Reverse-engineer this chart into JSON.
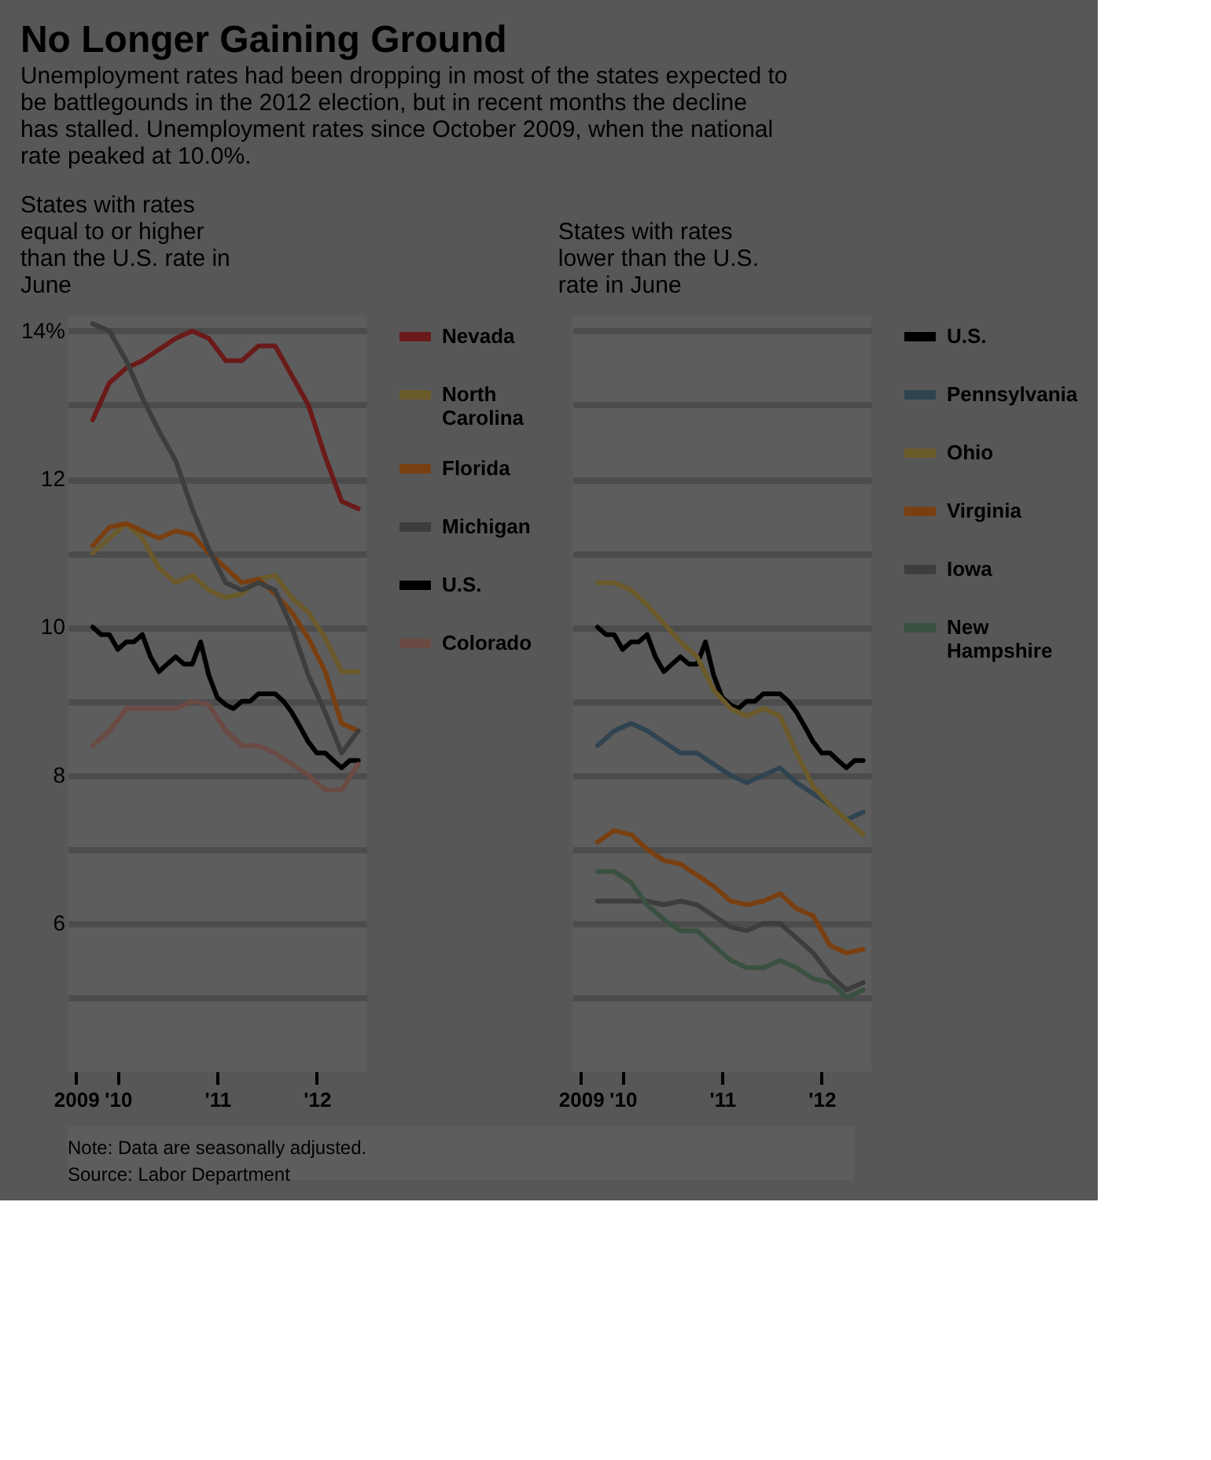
{
  "chart_data": [
    {
      "type": "line",
      "title": "No Longer Gaining Ground",
      "subtitle": "Unemployment rates had been dropping in most of the states expected to be battlegounds in the 2012 election, but in recent months the decline has stalled. Unemployment rates since October 2009, when the national rate peaked at 10.0%.",
      "annotations": [
        "States with rates equal to or higher than the U.S. rate in June",
        "Note: Data are seasonally adjusted.",
        "Source: Labor Department"
      ],
      "x": [
        "2009-10",
        "2009-12",
        "2010-02",
        "2010-04",
        "2010-06",
        "2010-08",
        "2010-10",
        "2010-12",
        "2011-02",
        "2011-04",
        "2011-06",
        "2011-08",
        "2011-10",
        "2011-12",
        "2012-02",
        "2012-04",
        "2012-06"
      ],
      "series": [
        {
          "name": "Nevada",
          "color": "#6b1a1a",
          "values": [
            12.8,
            13.3,
            13.5,
            13.6,
            13.75,
            13.9,
            14.0,
            13.9,
            13.6,
            13.6,
            13.8,
            13.8,
            13.4,
            13.0,
            12.3,
            11.7,
            11.6
          ]
        },
        {
          "name": "North Carolina",
          "color": "#6b5a2a",
          "values": [
            11.0,
            11.2,
            11.4,
            11.2,
            10.8,
            10.6,
            10.7,
            10.5,
            10.4,
            10.45,
            10.65,
            10.7,
            10.4,
            10.2,
            9.85,
            9.4,
            9.4
          ]
        },
        {
          "name": "Florida",
          "color": "#7a3f10",
          "values": [
            11.1,
            11.35,
            11.4,
            11.3,
            11.2,
            11.3,
            11.25,
            11.0,
            10.8,
            10.6,
            10.65,
            10.45,
            10.2,
            9.85,
            9.4,
            8.7,
            8.6
          ]
        },
        {
          "name": "Michigan",
          "color": "#3d3d3d",
          "values": [
            14.1,
            14.0,
            13.6,
            13.1,
            12.65,
            12.25,
            11.6,
            11.05,
            10.6,
            10.5,
            10.6,
            10.5,
            10.0,
            9.35,
            8.85,
            8.3,
            8.6
          ]
        },
        {
          "name": "U.S.",
          "color": "#000000",
          "x": [
            "2009-10",
            "2009-11",
            "2009-12",
            "2010-01",
            "2010-02",
            "2010-03",
            "2010-04",
            "2010-05",
            "2010-06",
            "2010-07",
            "2010-08",
            "2010-09",
            "2010-10",
            "2010-11",
            "2010-12",
            "2011-01",
            "2011-02",
            "2011-03",
            "2011-04",
            "2011-05",
            "2011-06",
            "2011-07",
            "2011-08",
            "2011-09",
            "2011-10",
            "2011-11",
            "2011-12",
            "2012-01",
            "2012-02",
            "2012-03",
            "2012-04",
            "2012-05",
            "2012-06"
          ],
          "values": [
            10.0,
            9.9,
            9.9,
            9.7,
            9.8,
            9.8,
            9.9,
            9.6,
            9.4,
            9.5,
            9.6,
            9.5,
            9.5,
            9.8,
            9.35,
            9.05,
            8.95,
            8.9,
            9.0,
            9.0,
            9.1,
            9.1,
            9.1,
            9.0,
            8.85,
            8.65,
            8.45,
            8.3,
            8.3,
            8.2,
            8.1,
            8.2,
            8.2
          ]
        },
        {
          "name": "Colorado",
          "color": "#6b4a44",
          "values": [
            8.4,
            8.6,
            8.9,
            8.9,
            8.9,
            8.9,
            9.0,
            8.95,
            8.6,
            8.4,
            8.4,
            8.3,
            8.15,
            8.0,
            7.8,
            7.8,
            8.15
          ]
        }
      ],
      "xlim": [
        "2009-07-01",
        "2012-07-01"
      ],
      "xticks": [
        {
          "value": "2009-08",
          "label": "2009"
        },
        {
          "value": "2010-01",
          "label": "'10"
        },
        {
          "value": "2011-01",
          "label": "'11"
        },
        {
          "value": "2012-01",
          "label": "'12"
        }
      ],
      "ylim": [
        4,
        14.2
      ],
      "yticks": [
        {
          "value": 14,
          "label": "14%"
        },
        {
          "value": 13,
          "label": null
        },
        12,
        {
          "value": 11,
          "label": null
        },
        10,
        {
          "value": 9,
          "label": null
        },
        8,
        {
          "value": 7,
          "label": null
        },
        6,
        {
          "value": 5,
          "label": null
        }
      ],
      "grid": "y",
      "legend": "right"
    },
    {
      "type": "line",
      "annotations": [
        "States with rates lower than the U.S. rate in June"
      ],
      "x": [
        "2009-10",
        "2009-12",
        "2010-02",
        "2010-04",
        "2010-06",
        "2010-08",
        "2010-10",
        "2010-12",
        "2011-02",
        "2011-04",
        "2011-06",
        "2011-08",
        "2011-10",
        "2011-12",
        "2012-02",
        "2012-04",
        "2012-06"
      ],
      "series": [
        {
          "name": "U.S.",
          "color": "#000000",
          "x": [
            "2009-10",
            "2009-11",
            "2009-12",
            "2010-01",
            "2010-02",
            "2010-03",
            "2010-04",
            "2010-05",
            "2010-06",
            "2010-07",
            "2010-08",
            "2010-09",
            "2010-10",
            "2010-11",
            "2010-12",
            "2011-01",
            "2011-02",
            "2011-03",
            "2011-04",
            "2011-05",
            "2011-06",
            "2011-07",
            "2011-08",
            "2011-09",
            "2011-10",
            "2011-11",
            "2011-12",
            "2012-01",
            "2012-02",
            "2012-03",
            "2012-04",
            "2012-05",
            "2012-06"
          ],
          "values": [
            10.0,
            9.9,
            9.9,
            9.7,
            9.8,
            9.8,
            9.9,
            9.6,
            9.4,
            9.5,
            9.6,
            9.5,
            9.5,
            9.8,
            9.35,
            9.05,
            8.95,
            8.9,
            9.0,
            9.0,
            9.1,
            9.1,
            9.1,
            9.0,
            8.85,
            8.65,
            8.45,
            8.3,
            8.3,
            8.2,
            8.1,
            8.2,
            8.2
          ]
        },
        {
          "name": "Pennsylvania",
          "color": "#2f4450",
          "values": [
            8.4,
            8.6,
            8.7,
            8.6,
            8.45,
            8.3,
            8.3,
            8.15,
            8.0,
            7.9,
            8.0,
            8.1,
            7.9,
            7.75,
            7.6,
            7.4,
            7.5
          ]
        },
        {
          "name": "Ohio",
          "color": "#6b5a2a",
          "values": [
            10.6,
            10.6,
            10.5,
            10.3,
            10.05,
            9.8,
            9.6,
            9.15,
            8.9,
            8.8,
            8.9,
            8.8,
            8.3,
            7.85,
            7.6,
            7.4,
            7.2
          ]
        },
        {
          "name": "Virginia",
          "color": "#7a3f10",
          "values": [
            7.1,
            7.25,
            7.2,
            7.0,
            6.85,
            6.8,
            6.65,
            6.5,
            6.3,
            6.25,
            6.3,
            6.4,
            6.2,
            6.1,
            5.7,
            5.6,
            5.65
          ]
        },
        {
          "name": "Iowa",
          "color": "#3d3d3d",
          "values": [
            6.3,
            6.3,
            6.3,
            6.3,
            6.25,
            6.3,
            6.25,
            6.1,
            5.95,
            5.9,
            6.0,
            6.0,
            5.8,
            5.6,
            5.3,
            5.1,
            5.2
          ]
        },
        {
          "name": "New Hampshire",
          "color": "#3a5040",
          "values": [
            6.7,
            6.7,
            6.55,
            6.25,
            6.05,
            5.9,
            5.9,
            5.7,
            5.5,
            5.4,
            5.4,
            5.5,
            5.4,
            5.25,
            5.2,
            5.0,
            5.1
          ]
        }
      ],
      "xlim": [
        "2009-07-01",
        "2012-07-01"
      ],
      "xticks": [
        {
          "value": "2009-08",
          "label": "2009"
        },
        {
          "value": "2010-01",
          "label": "'10"
        },
        {
          "value": "2011-01",
          "label": "'11"
        },
        {
          "value": "2012-01",
          "label": "'12"
        }
      ],
      "ylim": [
        4,
        14.2
      ],
      "yticks": [
        14,
        13,
        12,
        11,
        10,
        9,
        8,
        7,
        6,
        5
      ],
      "grid": "y",
      "legend": "right",
      "tick_labels": "x"
    }
  ]
}
